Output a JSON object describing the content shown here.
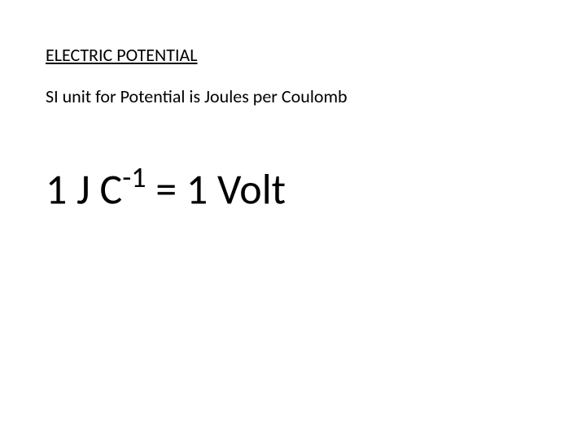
{
  "slide": {
    "title": "ELECTRIC POTENTIAL",
    "subtitle": "SI unit for Potential is Joules per Coulomb",
    "equation": {
      "prefix": "1 J C",
      "superscript": "-1",
      "suffix": " = 1 Volt"
    },
    "styling": {
      "background_color": "#ffffff",
      "text_color": "#000000",
      "title_fontsize": 22,
      "subtitle_fontsize": 22,
      "equation_fontsize": 52,
      "superscript_fontsize": 36,
      "font_family": "Calibri"
    }
  }
}
